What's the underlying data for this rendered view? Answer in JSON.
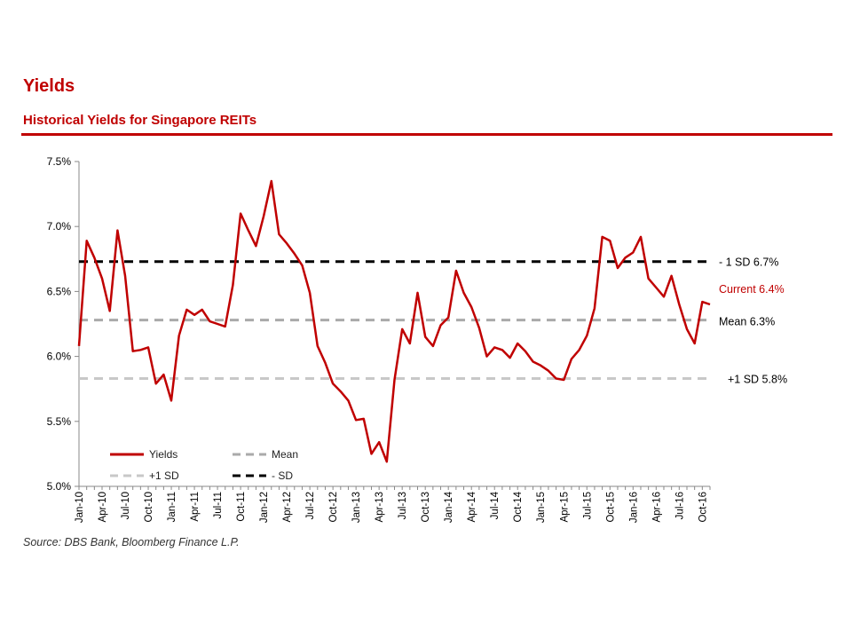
{
  "page": {
    "heading": "Yields",
    "subheading": "Historical Yields for Singapore REITs",
    "source": "Source: DBS Bank, Bloomberg Finance L.P."
  },
  "colors": {
    "accent": "#c00000",
    "yields_line": "#c00000",
    "mean_line": "#aaaaaa",
    "plus_sd_line": "#c8c8c8",
    "minus_sd_line": "#000000"
  },
  "chart_data": {
    "type": "line",
    "title": "Historical Yields for Singapore REITs",
    "xlabel": "",
    "ylabel": "",
    "ylim": [
      5.0,
      7.5
    ],
    "y_ticks": [
      "5.0%",
      "5.5%",
      "6.0%",
      "6.5%",
      "7.0%",
      "7.5%"
    ],
    "y_tick_values": [
      5.0,
      5.5,
      6.0,
      6.5,
      7.0,
      7.5
    ],
    "x_tick_labels": [
      "Jan-10",
      "Apr-10",
      "Jul-10",
      "Oct-10",
      "Jan-11",
      "Apr-11",
      "Jul-11",
      "Oct-11",
      "Jan-12",
      "Apr-12",
      "Jul-12",
      "Oct-12",
      "Jan-13",
      "Apr-13",
      "Jul-13",
      "Oct-13",
      "Jan-14",
      "Apr-14",
      "Jul-14",
      "Oct-14",
      "Jan-15",
      "Apr-15",
      "Jul-15",
      "Oct-15",
      "Jan-16",
      "Apr-16",
      "Jul-16",
      "Oct-16"
    ],
    "grid": false,
    "legend_position": "bottom-left",
    "series": [
      {
        "name": "Yields",
        "x_start": "Jan-10",
        "frequency": "monthly",
        "values": [
          6.08,
          6.89,
          6.76,
          6.6,
          6.35,
          6.97,
          6.62,
          6.04,
          6.05,
          6.07,
          5.79,
          5.86,
          5.66,
          6.16,
          6.36,
          6.32,
          6.36,
          6.27,
          6.25,
          6.23,
          6.55,
          7.1,
          6.97,
          6.85,
          7.08,
          7.35,
          6.94,
          6.87,
          6.79,
          6.7,
          6.49,
          6.08,
          5.95,
          5.79,
          5.73,
          5.66,
          5.51,
          5.52,
          5.25,
          5.34,
          5.19,
          5.82,
          6.21,
          6.1,
          6.49,
          6.15,
          6.08,
          6.24,
          6.3,
          6.66,
          6.49,
          6.38,
          6.22,
          6.0,
          6.07,
          6.05,
          5.99,
          6.1,
          6.04,
          5.96,
          5.93,
          5.89,
          5.83,
          5.82,
          5.98,
          6.05,
          6.16,
          6.37,
          6.92,
          6.89,
          6.68,
          6.76,
          6.8,
          6.92,
          6.6,
          6.53,
          6.46,
          6.62,
          6.4,
          6.21,
          6.1,
          6.42,
          6.4
        ]
      },
      {
        "name": "Mean",
        "value": 6.28,
        "style": "dashed"
      },
      {
        "name": "+1 SD",
        "value": 5.83,
        "style": "dashed"
      },
      {
        "name": "- SD",
        "value": 6.73,
        "style": "dashed"
      }
    ],
    "annotations": {
      "minus_sd": "- 1 SD 6.7%",
      "current": "Current  6.4%",
      "mean": "Mean 6.3%",
      "plus_sd": "+1 SD 5.8%"
    }
  }
}
